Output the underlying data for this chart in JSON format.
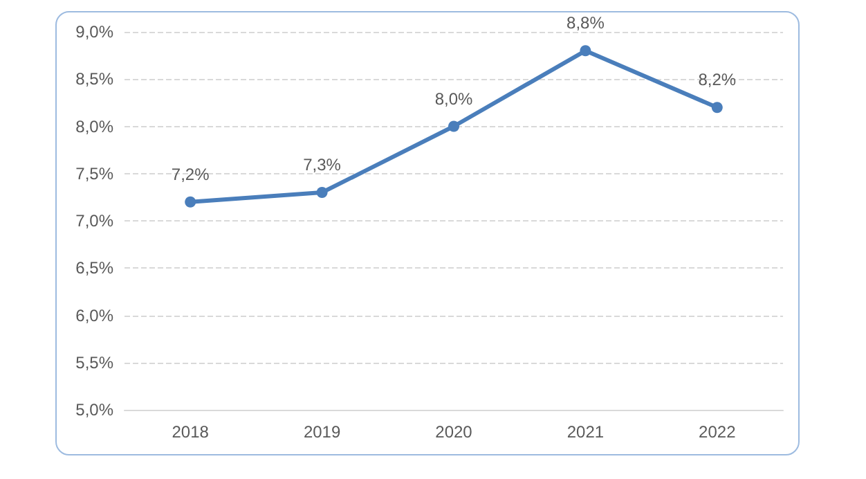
{
  "chart_data": {
    "type": "line",
    "categories": [
      "2018",
      "2019",
      "2020",
      "2021",
      "2022"
    ],
    "series": [
      {
        "color": "#4a7ebb",
        "values": [
          7.2,
          7.3,
          8.0,
          8.8,
          8.2
        ]
      }
    ],
    "value_labels": [
      "7,2%",
      "7,3%",
      "8,0%",
      "8,8%",
      "8,2%"
    ],
    "ylim": [
      5,
      9
    ],
    "yticks": [
      {
        "value": 5,
        "label": "5,0%"
      },
      {
        "value": 5.5,
        "label": "5,5%"
      },
      {
        "value": 6,
        "label": "6,0%"
      },
      {
        "value": 6.5,
        "label": "6,5%"
      },
      {
        "value": 7,
        "label": "7,0%"
      },
      {
        "value": 7.5,
        "label": "7,5%"
      },
      {
        "value": 8,
        "label": "8,0%"
      },
      {
        "value": 8.5,
        "label": "8,5%"
      },
      {
        "value": 9,
        "label": "9,0%"
      }
    ],
    "grid": "y",
    "marker": "circle",
    "line_style": "solid"
  }
}
